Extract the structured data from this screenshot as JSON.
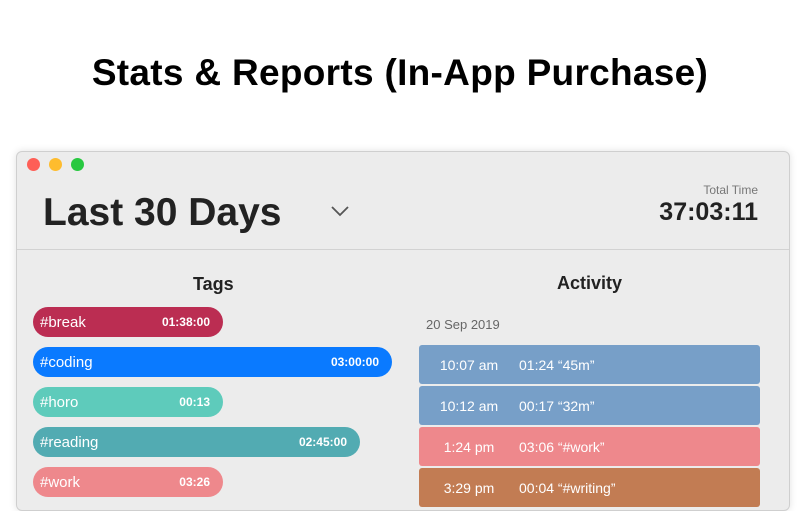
{
  "headline": "Stats & Reports (In-App Purchase)",
  "window": {
    "range_selector": {
      "value": "Last 30 Days",
      "icon": "chevron-down-icon"
    },
    "total_time": {
      "label": "Total Time",
      "value": "37:03:11"
    },
    "tags": {
      "title": "Tags",
      "items": [
        {
          "name": "#break",
          "duration": "01:38:00",
          "color": "#bb2d52",
          "fill": 0.53
        },
        {
          "name": "#coding",
          "duration": "03:00:00",
          "color": "#0a7aff",
          "fill": 1.0
        },
        {
          "name": "#horo",
          "duration": "00:13",
          "color": "#5ecbbb",
          "fill": 0.53
        },
        {
          "name": "#reading",
          "duration": "02:45:00",
          "color": "#52abb2",
          "fill": 0.91
        },
        {
          "name": "#work",
          "duration": "03:26",
          "color": "#ee888c",
          "fill": 0.53
        }
      ]
    },
    "activity": {
      "title": "Activity",
      "date": "20 Sep 2019",
      "rows": [
        {
          "time": "10:07 am",
          "desc": "01:24 “45m”",
          "color": "#779fc8"
        },
        {
          "time": "10:12 am",
          "desc": "00:17 “32m”",
          "color": "#779fc8"
        },
        {
          "time": "1:24 pm",
          "desc": "03:06 “#work”",
          "color": "#ee888c"
        },
        {
          "time": "3:29 pm",
          "desc": "00:04 “#writing”",
          "color": "#c27c53"
        }
      ]
    }
  }
}
